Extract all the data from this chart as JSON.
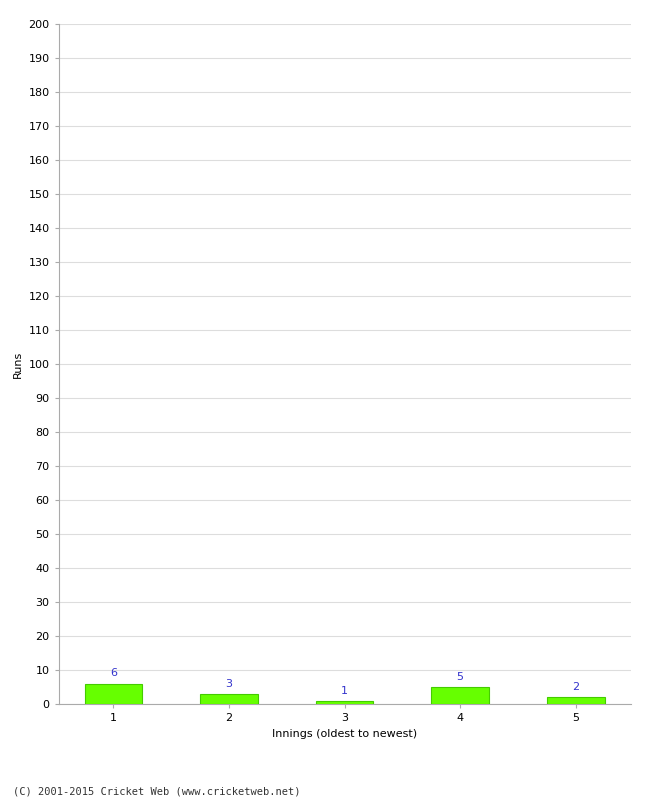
{
  "categories": [
    1,
    2,
    3,
    4,
    5
  ],
  "values": [
    6,
    3,
    1,
    5,
    2
  ],
  "bar_color": "#66ff00",
  "bar_edge_color": "#44cc00",
  "ylabel": "Runs",
  "xlabel": "Innings (oldest to newest)",
  "ylim": [
    0,
    200
  ],
  "yticks": [
    0,
    10,
    20,
    30,
    40,
    50,
    60,
    70,
    80,
    90,
    100,
    110,
    120,
    130,
    140,
    150,
    160,
    170,
    180,
    190,
    200
  ],
  "annotation_color": "#3333cc",
  "annotation_fontsize": 8,
  "tick_fontsize": 8,
  "label_fontsize": 8,
  "footer": "(C) 2001-2015 Cricket Web (www.cricketweb.net)",
  "background_color": "#ffffff",
  "grid_color": "#dddddd",
  "spine_color": "#aaaaaa",
  "bar_width": 0.5
}
